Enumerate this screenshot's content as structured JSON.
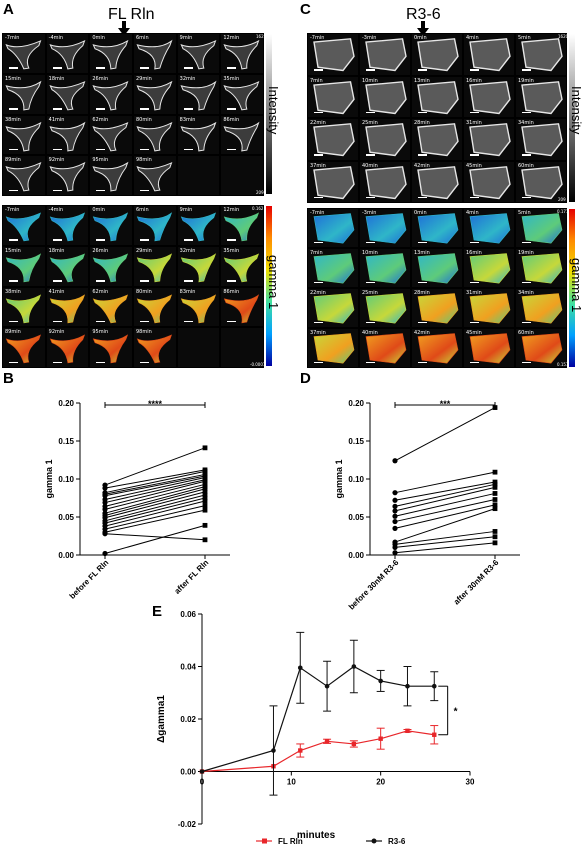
{
  "panels": {
    "a": {
      "label": "A",
      "title": "FL Rln"
    },
    "c": {
      "label": "C",
      "title": "R3-6"
    },
    "b": {
      "label": "B"
    },
    "d": {
      "label": "D"
    },
    "e": {
      "label": "E"
    }
  },
  "panel_a": {
    "intensity_times": [
      "-7min",
      "-4min",
      "0min",
      "6min",
      "9min",
      "12min",
      "15min",
      "18min",
      "26min",
      "29min",
      "32min",
      "35min",
      "38min",
      "41min",
      "62min",
      "80min",
      "83min",
      "86min",
      "89min",
      "92min",
      "95min",
      "98min"
    ],
    "gamma_times": [
      "-7min",
      "-4min",
      "0min",
      "6min",
      "9min",
      "12min",
      "15min",
      "18min",
      "26min",
      "29min",
      "32min",
      "35min",
      "38min",
      "41min",
      "62min",
      "80min",
      "83min",
      "86min",
      "89min",
      "92min",
      "95min",
      "98min"
    ],
    "intensity_label": "Intensity",
    "gamma_label": "gamma 1",
    "intensity_scale": [
      "1621",
      "209"
    ],
    "gamma_scale": [
      "0.162",
      "-0.0001"
    ]
  },
  "panel_c": {
    "intensity_times": [
      "-7min",
      "-3min",
      "0min",
      "4min",
      "5min",
      "7min",
      "10min",
      "13min",
      "16min",
      "19min",
      "22min",
      "25min",
      "28min",
      "31min",
      "34min",
      "37min",
      "40min",
      "42min",
      "45min",
      "60min"
    ],
    "gamma_times": [
      "-7min",
      "-3min",
      "0min",
      "4min",
      "5min",
      "7min",
      "10min",
      "13min",
      "16min",
      "19min",
      "22min",
      "25min",
      "28min",
      "31min",
      "34min",
      "37min",
      "40min",
      "42min",
      "45min",
      "60min"
    ],
    "intensity_label": "Intensity",
    "gamma_label": "gamma 1",
    "intensity_scale": [
      "1620",
      "209"
    ],
    "gamma_scale": [
      "0.171",
      "0.157"
    ]
  },
  "chart_data": [
    {
      "panel": "B",
      "type": "scatter",
      "ylabel": "gamma 1",
      "categories": [
        "before FL Rln",
        "after FL Rln"
      ],
      "ylim": [
        0,
        0.2
      ],
      "yticks": [
        "0.00",
        "0.05",
        "0.10",
        "0.15",
        "0.20"
      ],
      "significance": "****",
      "pairs": [
        [
          0.092,
          0.141
        ],
        [
          0.088,
          0.112
        ],
        [
          0.082,
          0.11
        ],
        [
          0.08,
          0.106
        ],
        [
          0.078,
          0.104
        ],
        [
          0.073,
          0.102
        ],
        [
          0.069,
          0.099
        ],
        [
          0.064,
          0.097
        ],
        [
          0.06,
          0.093
        ],
        [
          0.055,
          0.09
        ],
        [
          0.052,
          0.087
        ],
        [
          0.049,
          0.083
        ],
        [
          0.045,
          0.079
        ],
        [
          0.042,
          0.075
        ],
        [
          0.038,
          0.071
        ],
        [
          0.034,
          0.065
        ],
        [
          0.03,
          0.059
        ],
        [
          0.028,
          0.02
        ],
        [
          0.002,
          0.039
        ]
      ]
    },
    {
      "panel": "D",
      "type": "scatter",
      "ylabel": "gamma 1",
      "categories": [
        "before 30nM R3-6",
        "after 30nM R3-6"
      ],
      "ylim": [
        0,
        0.2
      ],
      "yticks": [
        "0.00",
        "0.05",
        "0.10",
        "0.15",
        "0.20"
      ],
      "significance": "***",
      "pairs": [
        [
          0.124,
          0.194
        ],
        [
          0.082,
          0.109
        ],
        [
          0.072,
          0.096
        ],
        [
          0.064,
          0.093
        ],
        [
          0.058,
          0.089
        ],
        [
          0.051,
          0.081
        ],
        [
          0.044,
          0.073
        ],
        [
          0.035,
          0.066
        ],
        [
          0.017,
          0.061
        ],
        [
          0.014,
          0.031
        ],
        [
          0.01,
          0.024
        ],
        [
          0.003,
          0.016
        ]
      ]
    },
    {
      "panel": "E",
      "type": "line",
      "xlabel": "minutes",
      "ylabel": "Δgamma1",
      "xlim": [
        0,
        30
      ],
      "ylim": [
        -0.02,
        0.06
      ],
      "xticks": [
        "0",
        "10",
        "20",
        "30"
      ],
      "yticks": [
        "-0.02",
        "0.00",
        "0.02",
        "0.04",
        "0.06"
      ],
      "significance": "*",
      "series": [
        {
          "name": "FL Rln",
          "color": "#e8262a",
          "x": [
            0,
            8,
            11,
            14,
            17,
            20,
            23,
            26
          ],
          "y": [
            0.0,
            0.002,
            0.008,
            0.0115,
            0.0105,
            0.0125,
            0.0155,
            0.014
          ],
          "err": [
            0,
            0,
            0.0025,
            0.0008,
            0.0012,
            0.004,
            0.0005,
            0.0035
          ]
        },
        {
          "name": "R3-6",
          "color": "#111111",
          "x": [
            0,
            8,
            11,
            14,
            17,
            20,
            23,
            26
          ],
          "y": [
            0.0,
            0.008,
            0.0395,
            0.0325,
            0.04,
            0.0345,
            0.0325,
            0.0325
          ],
          "err": [
            0,
            0.017,
            0.0135,
            0.0095,
            0.01,
            0.004,
            0.0075,
            0.0055
          ]
        }
      ]
    }
  ]
}
